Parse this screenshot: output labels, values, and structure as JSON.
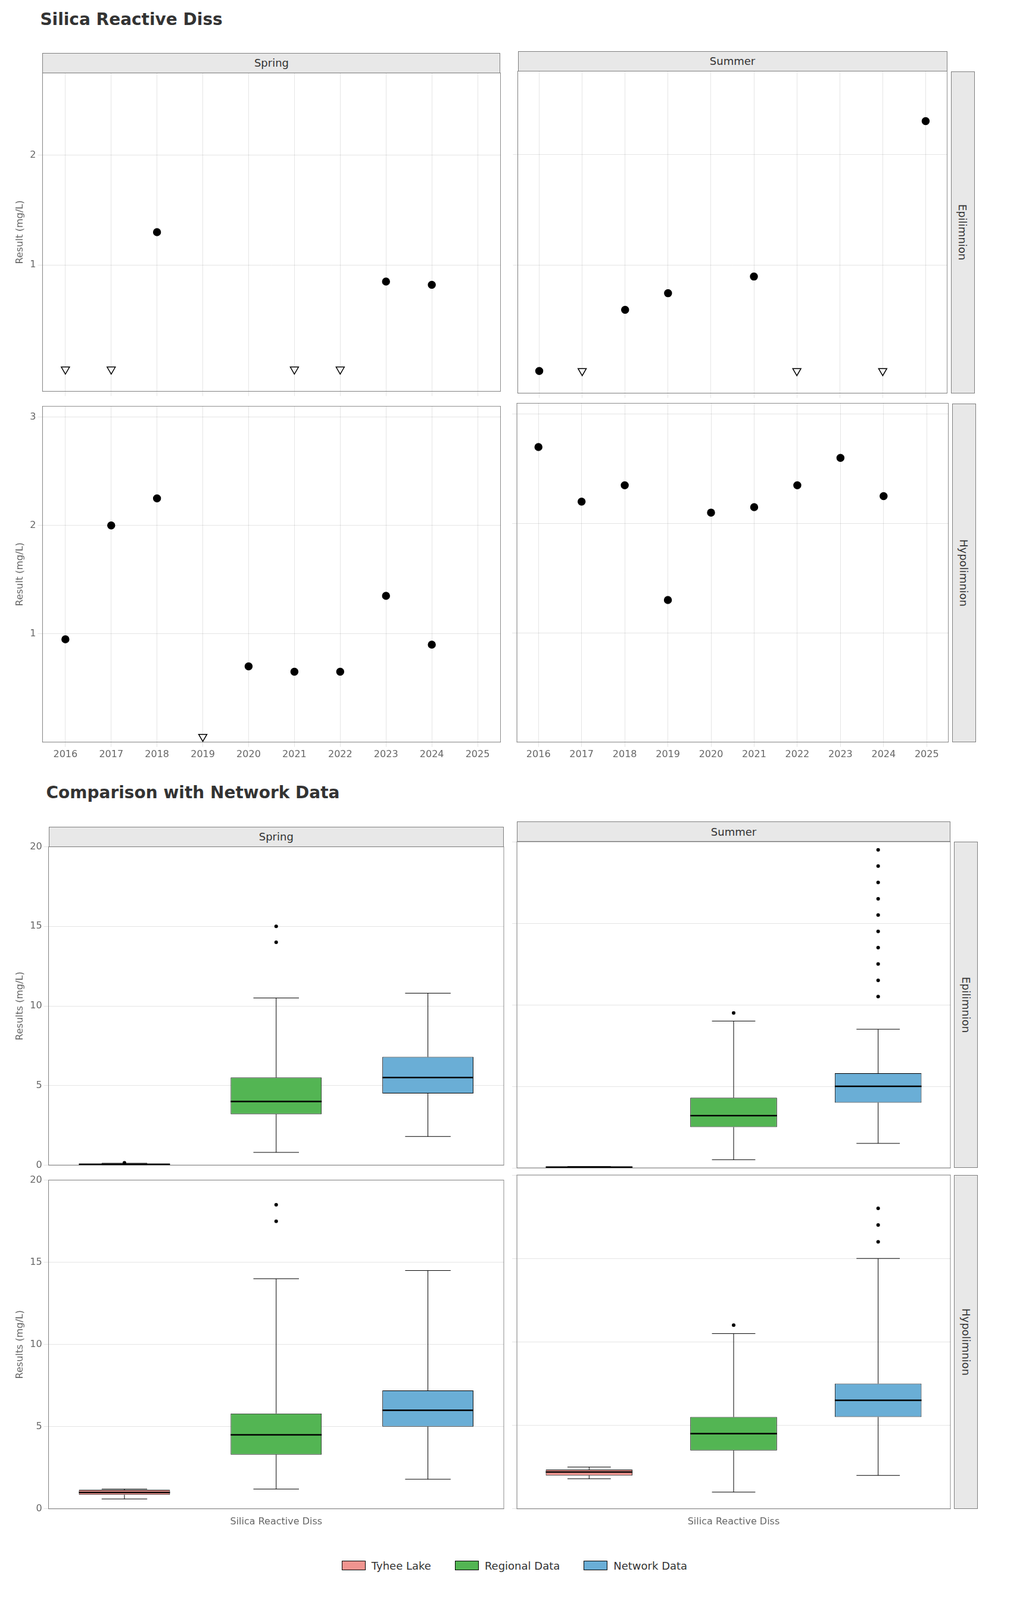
{
  "chart_data": [
    {
      "type": "scatter",
      "title": "Silica Reactive Diss",
      "subtitle": "Spring",
      "ylabel": "Result (mg/L)",
      "xlim": [
        2015.5,
        2025.5
      ],
      "xticks": [
        2016,
        2017,
        2018,
        2019,
        2020,
        2021,
        2022,
        2023,
        2024,
        2025
      ],
      "ylim": [
        -0.15,
        2.75
      ],
      "yticks": [
        1,
        2
      ],
      "grid": true,
      "tick_labels": "y",
      "series": [
        {
          "marker": "circle",
          "color": "#000000",
          "x": [
            2018,
            2023,
            2024
          ],
          "values": [
            1.3,
            0.85,
            0.82
          ]
        },
        {
          "marker": "triangle_down",
          "color": "#000000",
          "x": [
            2016,
            2017,
            2021,
            2022
          ],
          "values": [
            0.05,
            0.05,
            0.05,
            0.05
          ]
        }
      ]
    },
    {
      "type": "scatter",
      "subtitle": "Summer",
      "annotations": [
        "Epilimnion"
      ],
      "xlim": [
        2015.5,
        2025.5
      ],
      "xticks": [
        2016,
        2017,
        2018,
        2019,
        2020,
        2021,
        2022,
        2023,
        2024,
        2025
      ],
      "ylim": [
        -0.15,
        2.75
      ],
      "yticks": [
        1,
        2
      ],
      "grid": true,
      "tick_labels": false,
      "series": [
        {
          "marker": "circle",
          "color": "#000000",
          "x": [
            2016,
            2018,
            2019,
            2021,
            2025
          ],
          "values": [
            0.05,
            0.6,
            0.75,
            0.9,
            2.3
          ]
        },
        {
          "marker": "triangle_down",
          "color": "#000000",
          "x": [
            2017,
            2022,
            2024
          ],
          "values": [
            0.05,
            0.05,
            0.05
          ]
        }
      ]
    },
    {
      "type": "scatter",
      "ylabel": "Result (mg/L)",
      "xlim": [
        2015.5,
        2025.5
      ],
      "xticks": [
        2016,
        2017,
        2018,
        2019,
        2020,
        2021,
        2022,
        2023,
        2024,
        2025
      ],
      "ylim": [
        0.0,
        3.1
      ],
      "yticks": [
        1,
        2,
        3
      ],
      "grid": true,
      "series": [
        {
          "marker": "circle",
          "color": "#000000",
          "x": [
            2016,
            2017,
            2018,
            2020,
            2021,
            2022,
            2023,
            2024
          ],
          "values": [
            0.95,
            2.0,
            2.25,
            0.7,
            0.65,
            0.65,
            1.35,
            0.9
          ]
        },
        {
          "marker": "triangle_down",
          "color": "#000000",
          "x": [
            2019
          ],
          "values": [
            0.05
          ]
        }
      ]
    },
    {
      "type": "scatter",
      "annotations": [
        "Hypolimnion"
      ],
      "xlim": [
        2015.5,
        2025.5
      ],
      "xticks": [
        2016,
        2017,
        2018,
        2019,
        2020,
        2021,
        2022,
        2023,
        2024,
        2025
      ],
      "ylim": [
        0.0,
        3.1
      ],
      "yticks": [
        1,
        2,
        3
      ],
      "grid": true,
      "tick_labels": "x",
      "series": [
        {
          "marker": "circle",
          "color": "#000000",
          "x": [
            2016,
            2017,
            2018,
            2019,
            2020,
            2021,
            2022,
            2023,
            2024
          ],
          "values": [
            2.7,
            2.2,
            2.35,
            1.3,
            2.1,
            2.15,
            2.35,
            2.6,
            2.25
          ]
        }
      ]
    },
    {
      "type": "box",
      "title": "Comparison with Network Data",
      "subtitle": "Spring",
      "ylabel": "Results (mg/L)",
      "ylim": [
        0,
        20
      ],
      "yticks": [
        0,
        5,
        10,
        15,
        20
      ],
      "grid": "y",
      "tick_labels": "y",
      "series": [
        {
          "name": "Tyhee Lake",
          "color": "#f0948f",
          "med": 0.05,
          "q1": 0.04,
          "q3": 0.09,
          "whislo": 0.03,
          "whishi": 0.12,
          "fliers": [
            0.15
          ]
        },
        {
          "name": "Regional Data",
          "color": "#53b553",
          "med": 4.0,
          "q1": 3.2,
          "q3": 5.5,
          "whislo": 0.8,
          "whishi": 10.5,
          "fliers": [
            14.0,
            15.0
          ]
        },
        {
          "name": "Network Data",
          "color": "#6aaed6",
          "med": 5.5,
          "q1": 4.5,
          "q3": 6.8,
          "whislo": 1.8,
          "whishi": 10.8,
          "fliers": []
        }
      ]
    },
    {
      "type": "box",
      "subtitle": "Summer",
      "annotations": [
        "Epilimnion"
      ],
      "ylim": [
        0,
        20
      ],
      "yticks": [
        0,
        5,
        10,
        15,
        20
      ],
      "grid": "y",
      "tick_labels": false,
      "series": [
        {
          "name": "Tyhee Lake",
          "color": "#f0948f",
          "med": 0.05,
          "q1": 0.04,
          "q3": 0.07,
          "whislo": 0.03,
          "whishi": 0.08,
          "fliers": []
        },
        {
          "name": "Regional Data",
          "color": "#53b553",
          "med": 3.2,
          "q1": 2.5,
          "q3": 4.3,
          "whislo": 0.5,
          "whishi": 9.0,
          "fliers": [
            9.5
          ]
        },
        {
          "name": "Network Data",
          "color": "#6aaed6",
          "med": 5.0,
          "q1": 4.0,
          "q3": 5.8,
          "whislo": 1.5,
          "whishi": 8.5,
          "fliers": [
            10.5,
            11.5,
            12.5,
            13.5,
            14.5,
            15.5,
            16.5,
            17.5,
            18.5,
            19.5
          ]
        }
      ]
    },
    {
      "type": "box",
      "ylabel": "Results (mg/L)",
      "xlabel": "Silica Reactive Diss",
      "legend": "bottom",
      "ylim": [
        0,
        20
      ],
      "yticks": [
        0,
        5,
        10,
        15,
        20
      ],
      "grid": "y",
      "tick_labels": "y",
      "series": [
        {
          "name": "Tyhee Lake",
          "color": "#f0948f",
          "med": 1.0,
          "q1": 0.85,
          "q3": 1.15,
          "whislo": 0.6,
          "whishi": 1.2,
          "fliers": []
        },
        {
          "name": "Regional Data",
          "color": "#53b553",
          "med": 4.5,
          "q1": 3.3,
          "q3": 5.8,
          "whislo": 1.2,
          "whishi": 14.0,
          "fliers": [
            17.5,
            18.5
          ]
        },
        {
          "name": "Network Data",
          "color": "#6aaed6",
          "med": 6.0,
          "q1": 5.0,
          "q3": 7.2,
          "whislo": 1.8,
          "whishi": 14.5,
          "fliers": []
        }
      ]
    },
    {
      "type": "box",
      "xlabel": "Silica Reactive Diss",
      "annotations": [
        "Hypolimnion"
      ],
      "ylim": [
        0,
        20
      ],
      "yticks": [
        0,
        5,
        10,
        15,
        20
      ],
      "grid": "y",
      "tick_labels": false,
      "series": [
        {
          "name": "Tyhee Lake",
          "color": "#f0948f",
          "med": 2.2,
          "q1": 2.0,
          "q3": 2.35,
          "whislo": 1.8,
          "whishi": 2.5,
          "fliers": []
        },
        {
          "name": "Regional Data",
          "color": "#53b553",
          "med": 4.5,
          "q1": 3.5,
          "q3": 5.5,
          "whislo": 1.0,
          "whishi": 10.5,
          "fliers": [
            11.0
          ]
        },
        {
          "name": "Network Data",
          "color": "#6aaed6",
          "med": 6.5,
          "q1": 5.5,
          "q3": 7.5,
          "whislo": 2.0,
          "whishi": 15.0,
          "fliers": [
            16.0,
            17.0,
            18.0
          ]
        }
      ]
    }
  ]
}
